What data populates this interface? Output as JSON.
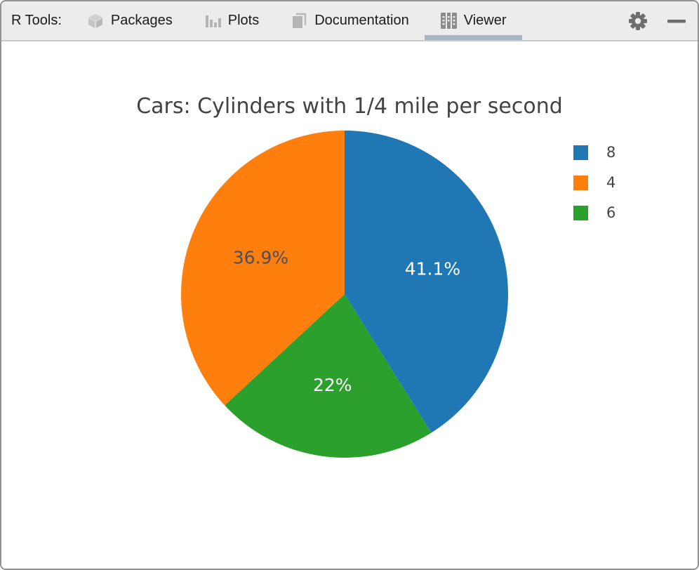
{
  "toolbar": {
    "label": "R Tools:",
    "tabs": [
      {
        "label": "Packages",
        "icon": "package-icon",
        "active": false
      },
      {
        "label": "Plots",
        "icon": "bar-chart-icon",
        "active": false
      },
      {
        "label": "Documentation",
        "icon": "document-icon",
        "active": false
      },
      {
        "label": "Viewer",
        "icon": "grid-icon",
        "active": true
      }
    ],
    "active_tab": "Viewer",
    "active_underline_color": "#a9b4c2",
    "toolbar_bg": "#ececec",
    "icon_color": "#bdbdbd",
    "active_icon_color": "#8c8c8c",
    "action_icon_color": "#6e6e6e"
  },
  "chart_data": {
    "type": "pie",
    "title": "Cars: Cylinders with 1/4 mile per second",
    "labels": [
      "8",
      "4",
      "6"
    ],
    "values": [
      41.1,
      36.9,
      22
    ],
    "colors": [
      "#1f77b4",
      "#ff7f0e",
      "#2ca02c"
    ],
    "slice_text": [
      "41.1%",
      "36.9%",
      "22%"
    ],
    "inside_text_colors": [
      "#ffffff",
      "#4c4f58",
      "#ffffff"
    ],
    "draw_order_clockwise_from_top": [
      0,
      2,
      1
    ],
    "start_angle_deg_from_top": 0,
    "legend_position": "right",
    "legend_order": [
      "8",
      "4",
      "6"
    ],
    "background": "#ffffff"
  }
}
